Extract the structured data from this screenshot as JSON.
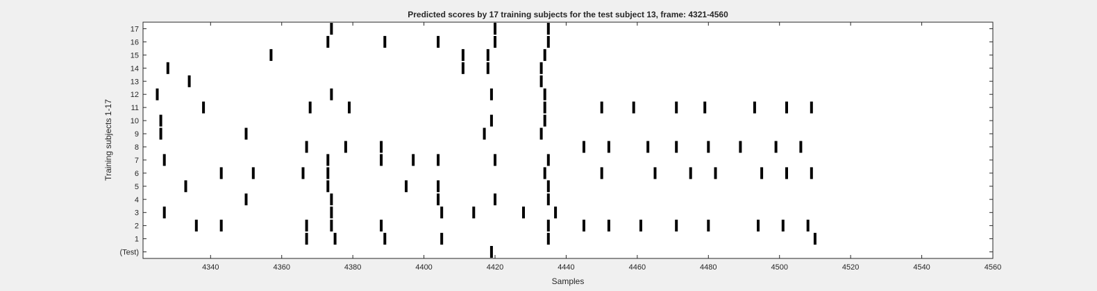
{
  "chart_data": {
    "type": "raster",
    "title": "Predicted scores by 17 training subjects for the test subject 13, frame: 4321-4560",
    "xlabel": "Samples",
    "ylabel": "Training subjects 1-17",
    "xlim": [
      4321,
      4560
    ],
    "x_ticks": [
      4340,
      4360,
      4380,
      4400,
      4420,
      4440,
      4460,
      4480,
      4500,
      4520,
      4540,
      4560
    ],
    "y_tick_labels": [
      "(Test)",
      "1",
      "2",
      "3",
      "4",
      "5",
      "6",
      "7",
      "8",
      "9",
      "10",
      "11",
      "12",
      "13",
      "14",
      "15",
      "16",
      "17"
    ],
    "marker_color": "#000000",
    "background": "#ffffff",
    "figure_background": "#f0f0f0",
    "series": [
      {
        "name": "(Test)",
        "row": 0,
        "events": [
          4419
        ]
      },
      {
        "name": "1",
        "row": 1,
        "events": [
          4367,
          4375,
          4389,
          4405,
          4435,
          4510
        ]
      },
      {
        "name": "2",
        "row": 2,
        "events": [
          4336,
          4343,
          4367,
          4374,
          4388,
          4435,
          4445,
          4452,
          4461,
          4471,
          4480,
          4494,
          4501,
          4508
        ]
      },
      {
        "name": "3",
        "row": 3,
        "events": [
          4327,
          4374,
          4405,
          4414,
          4428,
          4437
        ]
      },
      {
        "name": "4",
        "row": 4,
        "events": [
          4350,
          4374,
          4404,
          4420,
          4435
        ]
      },
      {
        "name": "5",
        "row": 5,
        "events": [
          4333,
          4373,
          4395,
          4404,
          4435
        ]
      },
      {
        "name": "6",
        "row": 6,
        "events": [
          4343,
          4352,
          4366,
          4373,
          4434,
          4450,
          4465,
          4475,
          4482,
          4495,
          4502,
          4509
        ]
      },
      {
        "name": "7",
        "row": 7,
        "events": [
          4327,
          4373,
          4388,
          4397,
          4404,
          4420,
          4435
        ]
      },
      {
        "name": "8",
        "row": 8,
        "events": [
          4367,
          4378,
          4388,
          4445,
          4452,
          4463,
          4471,
          4480,
          4489,
          4499,
          4506
        ]
      },
      {
        "name": "9",
        "row": 9,
        "events": [
          4326,
          4350,
          4417,
          4433
        ]
      },
      {
        "name": "10",
        "row": 10,
        "events": [
          4326,
          4419,
          4434
        ]
      },
      {
        "name": "11",
        "row": 11,
        "events": [
          4338,
          4368,
          4379,
          4434,
          4450,
          4459,
          4471,
          4479,
          4493,
          4502,
          4509
        ]
      },
      {
        "name": "12",
        "row": 12,
        "events": [
          4325,
          4374,
          4419,
          4434
        ]
      },
      {
        "name": "13",
        "row": 13,
        "events": [
          4334,
          4433
        ]
      },
      {
        "name": "14",
        "row": 14,
        "events": [
          4328,
          4411,
          4418,
          4433
        ]
      },
      {
        "name": "15",
        "row": 15,
        "events": [
          4357,
          4411,
          4418,
          4434
        ]
      },
      {
        "name": "16",
        "row": 16,
        "events": [
          4373,
          4389,
          4404,
          4420,
          4435
        ]
      },
      {
        "name": "17",
        "row": 17,
        "events": [
          4374,
          4420,
          4435
        ]
      }
    ]
  }
}
